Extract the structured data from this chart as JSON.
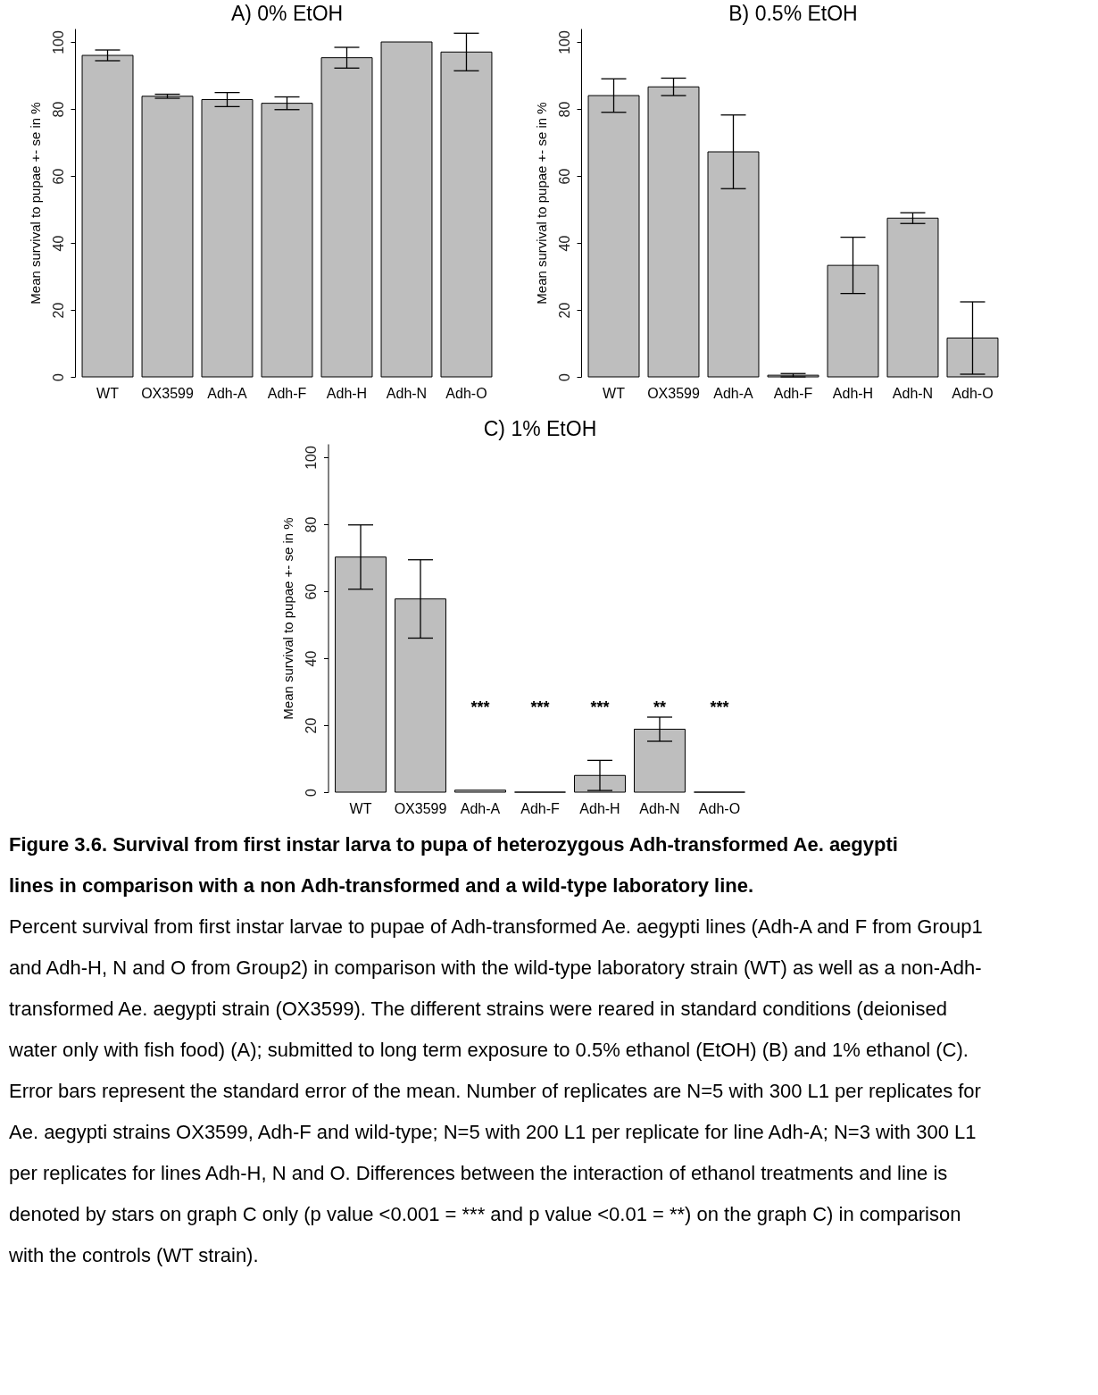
{
  "chart_data": [
    {
      "type": "bar",
      "title": "A) 0% EtOH",
      "ylabel": "Mean survival to pupae +- se in %",
      "categories": [
        "WT",
        "OX3599",
        "Adh-A",
        "Adh-F",
        "Adh-H",
        "Adh-N",
        "Adh-O"
      ],
      "values": [
        96,
        83.8,
        82.8,
        81.7,
        95.3,
        100,
        97
      ],
      "errors": [
        1.6,
        0.6,
        2.1,
        1.9,
        3.1,
        null,
        5.6
      ],
      "color": "#bebebe",
      "ylim": [
        0,
        104
      ],
      "yticks": [
        0,
        20,
        40,
        60,
        80,
        100
      ]
    },
    {
      "type": "bar",
      "title": "B) 0.5% EtOH",
      "ylabel": "Mean survival to pupae +- se in %",
      "categories": [
        "WT",
        "OX3599",
        "Adh-A",
        "Adh-F",
        "Adh-H",
        "Adh-N",
        "Adh-O"
      ],
      "values": [
        84,
        86.6,
        67.2,
        0.5,
        33.3,
        47.4,
        11.6
      ],
      "errors": [
        5,
        2.6,
        11,
        0.5,
        8.4,
        1.6,
        10.8
      ],
      "color": "#bebebe",
      "ylim": [
        0,
        104
      ],
      "yticks": [
        0,
        20,
        40,
        60,
        80,
        100
      ]
    },
    {
      "type": "bar",
      "title": "C) 1% EtOH",
      "ylabel": "Mean survival to pupae +- se in %",
      "categories": [
        "WT",
        "OX3599",
        "Adh-A",
        "Adh-F",
        "Adh-H",
        "Adh-N",
        "Adh-O"
      ],
      "values": [
        70.2,
        57.7,
        0.6,
        0,
        5,
        18.8,
        0
      ],
      "errors": [
        9.6,
        11.7,
        null,
        null,
        4.5,
        3.6,
        null
      ],
      "colors": [
        "#bebebe",
        "#bebebe",
        "#bebebe",
        "#000000",
        "#bebebe",
        "#bebebe",
        "#000000"
      ],
      "ylim": [
        0,
        104
      ],
      "yticks": [
        0,
        20,
        40,
        60,
        80,
        100
      ],
      "annotations": [
        "***",
        "***",
        "***",
        "**",
        "***"
      ]
    },
    {
      "type": "other",
      "annotations": [
        "Figure 3.6. Survival from first instar larva to pupa of heterozygous Adh-transformed Ae. aegypti lines in comparison with a non Adh-transformed and a wild-type laboratory line.",
        "Percent survival from first instar larvae to pupae of Adh-transformed Ae. aegypti lines (Adh-A and F from Group1 and Adh-H, N and O from Group2) in comparison with the wild-type laboratory strain (WT) as well as a non-Adh-transformed Ae. aegypti strain (OX3599). The different strains were reared in standard conditions (deionised water only with fish food) (A); submitted to long term exposure to 0.5% ethanol (EtOH) (B) and 1% ethanol (C). Error bars represent the standard error of the mean. Number of replicates are N=5 with 300 L1 per replicates for Ae. aegypti strains OX3599, Adh-F and wild-type; N=5 with 200 L1 per replicate for line Adh-A; N=3 with 300 L1 per replicates for lines Adh-H, N and O. Differences between the interaction of ethanol treatments and line is denoted by stars on graph C only (p value <0.001 = *** and p value <0.01 = **) on the graph C) in comparison with the controls (WT strain)."
      ]
    }
  ]
}
